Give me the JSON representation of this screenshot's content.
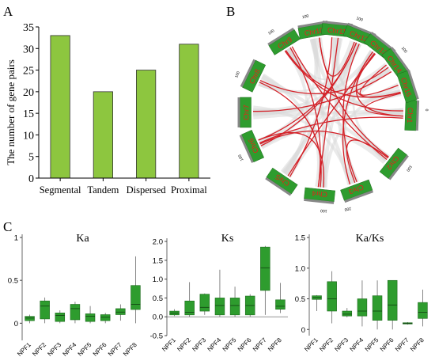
{
  "panels": {
    "a": "A",
    "b": "B",
    "c": "C"
  },
  "colors": {
    "bar": "#8dc63f",
    "box": "#2e9c2e",
    "chr": "#2e9c2e",
    "chr_text": "#e8201a",
    "link": "#d42027",
    "bg_link": "#d9d9d9"
  },
  "chart_data": [
    {
      "type": "bar",
      "title": "",
      "xlabel": "",
      "ylabel": "The number of gene pairs",
      "ylim": [
        0,
        35
      ],
      "yticks": [
        "0",
        "5",
        "10",
        "15",
        "20",
        "25",
        "30",
        "35"
      ],
      "categories": [
        "Segmental",
        "Tandem",
        "Dispersed",
        "Proximal"
      ],
      "values": [
        33,
        20,
        25,
        31
      ]
    },
    {
      "type": "circos",
      "chromosomes": [
        "Chr1",
        "Chr2",
        "Chr3",
        "Chr4",
        "Chr5",
        "Chr6",
        "Chr7",
        "Chr8",
        "Chr9",
        "Chr10",
        "Chr11",
        "Chr12",
        "Chr13",
        "Chr14",
        "Chr15"
      ],
      "tick_labels": [
        "0",
        "100",
        "200"
      ]
    },
    {
      "type": "box",
      "title": "Ka",
      "categories": [
        "NPF1",
        "NPF2",
        "NPF3",
        "NPF4",
        "NPF5",
        "NPF6",
        "NPF7",
        "NPF8"
      ],
      "ylim": [
        -0.2,
        1.0
      ],
      "yticks": [
        "0",
        "0.5",
        "1"
      ],
      "boxes": [
        {
          "min": 0.0,
          "q1": 0.03,
          "median": 0.06,
          "q3": 0.08,
          "max": 0.1
        },
        {
          "min": 0.0,
          "q1": 0.05,
          "median": 0.2,
          "q3": 0.26,
          "max": 0.3
        },
        {
          "min": 0.0,
          "q1": 0.02,
          "median": 0.09,
          "q3": 0.12,
          "max": 0.15
        },
        {
          "min": 0.0,
          "q1": 0.04,
          "median": 0.17,
          "q3": 0.22,
          "max": 0.25
        },
        {
          "min": 0.0,
          "q1": 0.02,
          "median": 0.08,
          "q3": 0.11,
          "max": 0.2
        },
        {
          "min": 0.0,
          "q1": 0.03,
          "median": 0.07,
          "q3": 0.1,
          "max": 0.12
        },
        {
          "min": 0.03,
          "q1": 0.1,
          "median": 0.13,
          "q3": 0.17,
          "max": 0.22
        },
        {
          "min": 0.0,
          "q1": 0.16,
          "median": 0.22,
          "q3": 0.44,
          "max": 0.78
        }
      ]
    },
    {
      "type": "box",
      "title": "Ks",
      "categories": [
        "NPF1",
        "NPF2",
        "NPF3",
        "NPF4",
        "NPF5",
        "NPF6",
        "NPF7",
        "NPF8"
      ],
      "ylim": [
        -0.5,
        2.0
      ],
      "yticks": [
        "-0.5",
        "0.0",
        "0.5",
        "1.0",
        "1.5",
        "2.0"
      ],
      "boxes": [
        {
          "min": 0.02,
          "q1": 0.05,
          "median": 0.1,
          "q3": 0.15,
          "max": 0.2
        },
        {
          "min": 0.0,
          "q1": 0.05,
          "median": 0.12,
          "q3": 0.42,
          "max": 0.92
        },
        {
          "min": 0.05,
          "q1": 0.15,
          "median": 0.25,
          "q3": 0.6,
          "max": 0.62
        },
        {
          "min": 0.0,
          "q1": 0.05,
          "median": 0.3,
          "q3": 0.5,
          "max": 1.25
        },
        {
          "min": 0.0,
          "q1": 0.05,
          "median": 0.3,
          "q3": 0.5,
          "max": 0.8
        },
        {
          "min": 0.0,
          "q1": 0.05,
          "median": 0.3,
          "q3": 0.55,
          "max": 0.6
        },
        {
          "min": 0.05,
          "q1": 0.7,
          "median": 1.3,
          "q3": 1.85,
          "max": 1.88
        },
        {
          "min": 0.1,
          "q1": 0.2,
          "median": 0.28,
          "q3": 0.45,
          "max": 0.9
        }
      ]
    },
    {
      "type": "box",
      "title": "Ka/Ks",
      "categories": [
        "NPF1",
        "NPF2",
        "NPF3",
        "NPF4",
        "NPF5",
        "NPF6",
        "NPF7",
        "NPF8"
      ],
      "ylim": [
        -0.1,
        1.5
      ],
      "yticks": [
        "0",
        "0.5",
        "1.0",
        "1.5"
      ],
      "boxes": [
        {
          "min": 0.3,
          "q1": 0.49,
          "median": 0.52,
          "q3": 0.55,
          "max": 0.56
        },
        {
          "min": 0.1,
          "q1": 0.3,
          "median": 0.5,
          "q3": 0.78,
          "max": 0.95
        },
        {
          "min": 0.2,
          "q1": 0.22,
          "median": 0.25,
          "q3": 0.3,
          "max": 0.35
        },
        {
          "min": 0.05,
          "q1": 0.22,
          "median": 0.3,
          "q3": 0.5,
          "max": 0.8
        },
        {
          "min": 0.0,
          "q1": 0.15,
          "median": 0.3,
          "q3": 0.55,
          "max": 0.8
        },
        {
          "min": 0.0,
          "q1": 0.15,
          "median": 0.4,
          "q3": 0.8,
          "max": 0.8
        },
        {
          "min": 0.08,
          "q1": 0.09,
          "median": 0.1,
          "q3": 0.11,
          "max": 0.12
        },
        {
          "min": 0.05,
          "q1": 0.18,
          "median": 0.28,
          "q3": 0.44,
          "max": 0.65
        }
      ]
    }
  ]
}
